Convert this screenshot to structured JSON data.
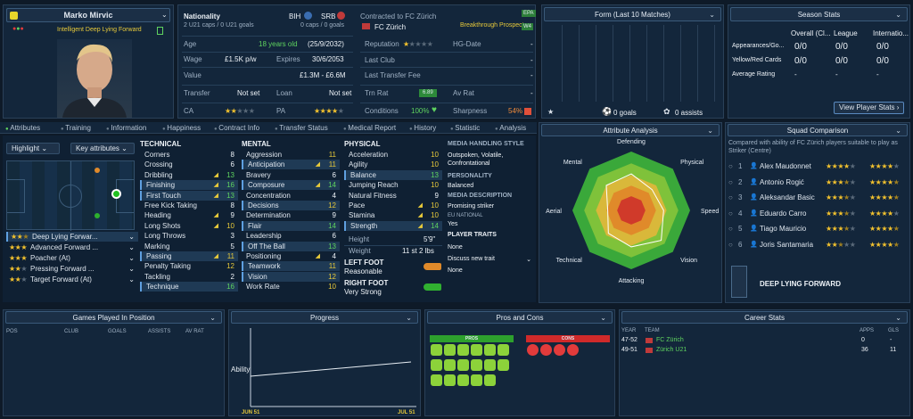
{
  "player": {
    "name": "Marko Mirvic",
    "caps": "2 U21 caps / 0 U21 goals",
    "role": "Intelligent  Deep Lying Forward"
  },
  "nationality": {
    "label": "Nationality",
    "n1": "BIH",
    "n2": "SRB",
    "caps2": "0 caps / 0 goals"
  },
  "contract": {
    "title": "Contracted to FC Zürich",
    "club": "FC Zürich",
    "badge": "Breakthrough Prospect",
    "age_l": "Age",
    "age_v": "18 years old",
    "dob": "(25/9/2032)",
    "wage_l": "Wage",
    "wage_v": "£1.5K p/w",
    "exp_l": "Expires",
    "exp_v": "30/6/2053",
    "value_l": "Value",
    "value_v": "£1.3M - £6.6M",
    "transfer_l": "Transfer",
    "transfer_v": "Not set",
    "loan_l": "Loan",
    "loan_v": "Not set",
    "ca_l": "CA",
    "pa_l": "PA",
    "rep_l": "Reputation",
    "hg_l": "HG-Date",
    "hg_v": "-",
    "last_club_l": "Last Club",
    "last_club_v": "-",
    "ltf_l": "Last Transfer Fee",
    "ltf_v": "-",
    "trn_l": "Trn Rat",
    "trn_v": "6.89",
    "av_l": "Av Rat",
    "av_v": "-",
    "cond_l": "Conditions",
    "cond_v": "100%",
    "sharp_l": "Sharpness",
    "sharp_v": "54%",
    "side_a": "EPA",
    "side_b": "W4"
  },
  "form": {
    "title": "Form (Last 10 Matches)",
    "goals": "0 goals",
    "assists": "0 assists"
  },
  "season": {
    "title": "Season Stats",
    "cols": [
      "Overall (Cl...",
      "League",
      "Internatio..."
    ],
    "rows": [
      {
        "label": "Appearances/Go...",
        "v": [
          "0/0",
          "0/0",
          "0/0"
        ]
      },
      {
        "label": "Yellow/Red Cards",
        "v": [
          "0/0",
          "0/0",
          "0/0"
        ]
      },
      {
        "label": "Average Rating",
        "v": [
          "-",
          "-",
          "-"
        ]
      }
    ],
    "button": "View Player Stats"
  },
  "tabs": [
    "Attributes",
    "Training",
    "Information",
    "Happiness",
    "Contract Info",
    "Transfer Status",
    "Medical Report",
    "History",
    "Statistic",
    "Analysis"
  ],
  "controls": {
    "highlight": "Highlight",
    "keyattr": "Key attributes"
  },
  "roles": [
    {
      "name": "Deep Lying Forwar...",
      "s": 2.5
    },
    {
      "name": "Advanced Forward ...",
      "s": 3
    },
    {
      "name": "Poacher (At)",
      "s": 3
    },
    {
      "name": "Pressing Forward ...",
      "s": 2
    },
    {
      "name": "Target Forward (At)",
      "s": 2
    }
  ],
  "technical": {
    "title": "TECHNICAL",
    "rows": [
      {
        "n": "Corners",
        "v": "8",
        "a": false
      },
      {
        "n": "Crossing",
        "v": "6",
        "a": false
      },
      {
        "n": "Dribbling",
        "v": "13",
        "a": true
      },
      {
        "n": "Finishing",
        "v": "16",
        "a": true,
        "h": true
      },
      {
        "n": "First Touch",
        "v": "13",
        "a": true,
        "h": true
      },
      {
        "n": "Free Kick Taking",
        "v": "8",
        "a": false
      },
      {
        "n": "Heading",
        "v": "9",
        "a": true
      },
      {
        "n": "Long Shots",
        "v": "10",
        "a": true
      },
      {
        "n": "Long Throws",
        "v": "3",
        "a": false
      },
      {
        "n": "Marking",
        "v": "5",
        "a": false
      },
      {
        "n": "Passing",
        "v": "11",
        "a": true,
        "h": true
      },
      {
        "n": "Penalty Taking",
        "v": "12",
        "a": false
      },
      {
        "n": "Tackling",
        "v": "2",
        "a": false
      },
      {
        "n": "Technique",
        "v": "16",
        "a": false,
        "h": true
      }
    ]
  },
  "mental": {
    "title": "MENTAL",
    "rows": [
      {
        "n": "Aggression",
        "v": "11",
        "a": false
      },
      {
        "n": "Anticipation",
        "v": "11",
        "a": true,
        "h": true
      },
      {
        "n": "Bravery",
        "v": "6",
        "a": false
      },
      {
        "n": "Composure",
        "v": "14",
        "a": true,
        "h": true
      },
      {
        "n": "Concentration",
        "v": "4",
        "a": false
      },
      {
        "n": "Decisions",
        "v": "12",
        "a": false,
        "h": true
      },
      {
        "n": "Determination",
        "v": "9",
        "a": false
      },
      {
        "n": "Flair",
        "v": "14",
        "a": false,
        "h": true
      },
      {
        "n": "Leadership",
        "v": "6",
        "a": false
      },
      {
        "n": "Off The Ball",
        "v": "13",
        "a": false,
        "h": true
      },
      {
        "n": "Positioning",
        "v": "4",
        "a": true
      },
      {
        "n": "Teamwork",
        "v": "11",
        "a": false,
        "h": true
      },
      {
        "n": "Vision",
        "v": "12",
        "a": false,
        "h": true
      },
      {
        "n": "Work Rate",
        "v": "10",
        "a": false
      }
    ]
  },
  "physical": {
    "title": "PHYSICAL",
    "rows": [
      {
        "n": "Acceleration",
        "v": "10",
        "a": false
      },
      {
        "n": "Agility",
        "v": "10",
        "a": false
      },
      {
        "n": "Balance",
        "v": "13",
        "a": false,
        "h": true
      },
      {
        "n": "Jumping Reach",
        "v": "10",
        "a": false
      },
      {
        "n": "Natural Fitness",
        "v": "9",
        "a": false
      },
      {
        "n": "Pace",
        "v": "10",
        "a": true
      },
      {
        "n": "Stamina",
        "v": "10",
        "a": true
      },
      {
        "n": "Strength",
        "v": "14",
        "a": true,
        "h": true
      }
    ],
    "height_l": "Height",
    "height_v": "5'9\"",
    "weight_l": "Weight",
    "weight_v": "11 st 2 lbs",
    "lf_l": "LEFT FOOT",
    "lf_v": "Reasonable",
    "rf_l": "RIGHT FOOT",
    "rf_v": "Very Strong"
  },
  "media": {
    "style_l": "MEDIA HANDLING STYLE",
    "style_v": "Outspoken, Volatile, Confrontational",
    "pers_l": "PERSONALITY",
    "pers_v": "Balanced",
    "desc_l": "MEDIA DESCRIPTION",
    "desc_v": "Promising striker",
    "eu_l": "EU NATIONAL",
    "eu_v": "Yes",
    "traits_l": "PLAYER TRAITS",
    "traits_v": "None",
    "discuss": "Discuss new trait",
    "traits_v2": "None"
  },
  "analysis": {
    "title": "Attribute Analysis",
    "axes": [
      "Defending",
      "Physical",
      "Speed",
      "Vision",
      "Attacking",
      "Technical",
      "Aerial",
      "Mental"
    ]
  },
  "squad": {
    "title": "Squad Comparison",
    "desc": "Compared with ability of FC Zürich players suitable to play as Striker (Centre)",
    "rows": [
      {
        "n": "1",
        "name": "Alex Maudonnet",
        "c": 4,
        "p": 4
      },
      {
        "n": "2",
        "name": "Antonio Rogić",
        "c": 3.5,
        "p": 4.5
      },
      {
        "n": "3",
        "name": "Aleksandar Basic",
        "c": 3.5,
        "p": 4.5
      },
      {
        "n": "4",
        "name": "Eduardo Carro",
        "c": 3.5,
        "p": 4
      },
      {
        "n": "5",
        "name": "Tiago Mauricio",
        "c": 3.5,
        "p": 4.5
      },
      {
        "n": "6",
        "name": "Joris Santamaria",
        "c": 2.5,
        "p": 4.5
      }
    ],
    "role": "DEEP LYING FORWARD"
  },
  "gp": {
    "title": "Games Played In Position",
    "cols": [
      "POS",
      "CLUB",
      "GOALS",
      "ASSISTS",
      "AV RAT"
    ]
  },
  "progress": {
    "title": "Progress",
    "ylabel": "Ability",
    "x1": "JUN 51",
    "x2": "JUL 51"
  },
  "pros": {
    "title": "Pros and Cons",
    "pros": "PROS",
    "cons": "CONS"
  },
  "career": {
    "title": "Career Stats",
    "cols": [
      "YEAR",
      "TEAM",
      "APPS",
      "GLS"
    ],
    "rows": [
      {
        "y": "47-52",
        "t": "FC Zürich",
        "a": "0",
        "g": "-"
      },
      {
        "y": "49-51",
        "t": "Zürich U21",
        "a": "36",
        "g": "11"
      }
    ]
  },
  "colors": {
    "accent": "#5fd35f",
    "star": "#f2c12e",
    "bg": "#0e1a28"
  }
}
